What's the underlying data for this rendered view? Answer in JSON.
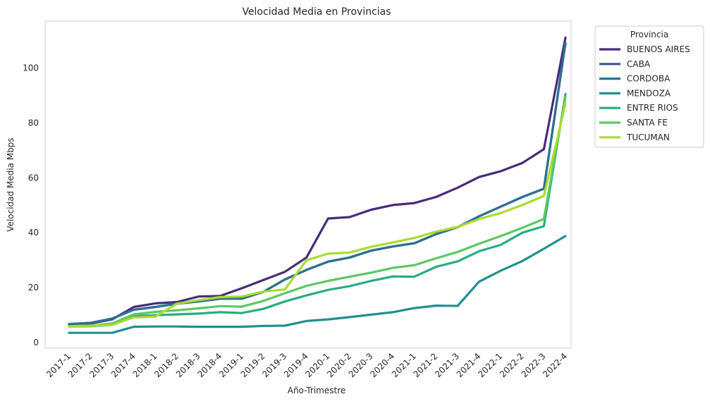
{
  "chart_data": {
    "type": "line",
    "title": "Velocidad Media en Provincias",
    "xlabel": "Año-Trimestre",
    "ylabel": "Velocidad Media Mbps",
    "ylim": [
      -2,
      117
    ],
    "yticks": [
      0,
      20,
      40,
      60,
      80,
      100
    ],
    "grid": false,
    "legend": {
      "title": "Provincia",
      "placement": "outside-top-right"
    },
    "categories": [
      "2017-1",
      "2017-2",
      "2017-3",
      "2017-4",
      "2018-1",
      "2018-2",
      "2018-3",
      "2018-4",
      "2019-1",
      "2019-2",
      "2019-3",
      "2019-4",
      "2020-1",
      "2020-2",
      "2020-3",
      "2020-4",
      "2021-1",
      "2021-2",
      "2021-3",
      "2021-4",
      "2022-1",
      "2022-2",
      "2022-3",
      "2022-4"
    ],
    "series": [
      {
        "name": "BUENOS AIRES",
        "color": "#472c7a",
        "values": [
          6.5,
          7.0,
          8.5,
          13.0,
          14.3,
          14.8,
          16.8,
          17.0,
          19.8,
          22.8,
          25.8,
          31.0,
          45.2,
          45.7,
          48.4,
          50.1,
          50.8,
          53.0,
          56.4,
          60.3,
          62.4,
          65.4,
          70.4,
          111.0
        ]
      },
      {
        "name": "CABA",
        "color": "#3b518b",
        "values": [
          6.8,
          7.2,
          8.8,
          12.0,
          13.0,
          14.2,
          15.0,
          16.0,
          16.2,
          18.5,
          23.0,
          26.5,
          29.5,
          31.0,
          33.5,
          35.0,
          36.2,
          39.5,
          42.0,
          46.0,
          49.5,
          53.0,
          56.0,
          109.0
        ]
      },
      {
        "name": "CORDOBA",
        "color": "#2c718e",
        "values": [
          6.8,
          7.2,
          8.8,
          12.0,
          13.0,
          14.2,
          15.0,
          16.0,
          16.0,
          18.5,
          23.0,
          26.5,
          29.5,
          31.0,
          33.5,
          35.0,
          36.2,
          39.5,
          42.0,
          46.0,
          49.5,
          53.0,
          56.0,
          109.0
        ]
      },
      {
        "name": "MENDOZA",
        "color": "#21908d",
        "values": [
          3.6,
          3.6,
          3.6,
          5.8,
          5.9,
          5.9,
          5.8,
          5.8,
          5.8,
          6.1,
          6.2,
          7.9,
          8.5,
          9.3,
          10.2,
          11.1,
          12.6,
          13.5,
          13.4,
          22.2,
          26.2,
          29.7,
          34.2,
          38.8
        ]
      },
      {
        "name": "ENTRE RIOS",
        "color": "#27ad81",
        "values": [
          5.9,
          6.0,
          6.5,
          9.7,
          10.0,
          10.3,
          10.6,
          11.1,
          10.8,
          12.3,
          15.0,
          17.2,
          19.2,
          20.6,
          22.5,
          24.1,
          24.0,
          27.6,
          29.6,
          33.3,
          35.6,
          40.0,
          42.4,
          90.5
        ]
      },
      {
        "name": "SANTA FE",
        "color": "#5cc863",
        "values": [
          6.0,
          6.2,
          7.0,
          10.3,
          11.2,
          11.8,
          12.5,
          13.3,
          13.1,
          15.2,
          18.0,
          20.7,
          22.5,
          24.0,
          25.5,
          27.2,
          28.2,
          30.7,
          33.0,
          36.0,
          38.8,
          41.8,
          45.0,
          89.5
        ]
      },
      {
        "name": "TUCUMAN",
        "color": "#aadc32",
        "values": [
          6.0,
          6.2,
          6.5,
          9.2,
          9.5,
          14.2,
          15.5,
          16.6,
          16.8,
          18.6,
          19.4,
          30.0,
          32.4,
          32.8,
          34.9,
          36.5,
          38.1,
          40.4,
          42.1,
          45.0,
          47.2,
          50.1,
          53.4,
          87.0
        ]
      }
    ]
  }
}
